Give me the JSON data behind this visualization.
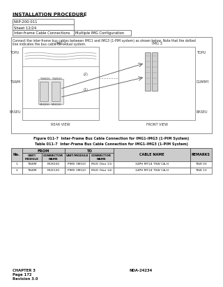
{
  "page_header": "INSTALLATION PROCEDURE",
  "info_table": [
    [
      "NAP-200-011",
      ""
    ],
    [
      "Sheet 12/24",
      ""
    ],
    [
      "Inter-frame Cable Connections",
      "Multiple IMG Configuration"
    ]
  ],
  "desc_line1": "Connect the inter-frame bus cables between IMG1 and IMG3 (1-PIM system) as shown below. Note that the dotted",
  "desc_line2": "line indicates the bus cable for a dual system.",
  "figure_caption": "Figure 011-7  Inter-Frame Bus Cable Connection for IMG1-IMG3 (1-PIM System)",
  "table_caption": "Table 011-7  Inter-Frame Bus Cable Connection for IMG1-IMG3 (1-PIM System)",
  "table_rows": [
    [
      "1",
      "TSWM",
      "MUX030",
      "PIM0 (IMG3)",
      "MUX (Slot 13)",
      "34PH MT24 TSW CA-H",
      "TSW 03"
    ],
    [
      "2",
      "TSWM",
      "MUX130",
      "PIM0 (IMG3)",
      "MUX (Slot 14)",
      "34PH MT24 TSW CA-H",
      "TSW 13"
    ]
  ],
  "footer_left": "CHAPTER 3\nPage 172\nRevision 3.0",
  "footer_right": "NDA-24234",
  "bg_color": "#ffffff",
  "header_bg": "#cccccc",
  "table_border": "#333333"
}
